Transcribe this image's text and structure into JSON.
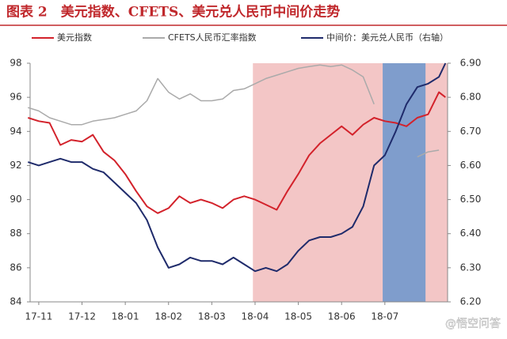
{
  "chart_data": {
    "type": "line",
    "title": "图表 2　美元指数、CFETS、美元兑人民币中间价走势",
    "watermark": "@悟空问答",
    "x": [
      -0.25,
      0,
      0.25,
      0.5,
      0.75,
      1,
      1.25,
      1.5,
      1.75,
      2,
      2.25,
      2.5,
      2.75,
      3,
      3.25,
      3.5,
      3.75,
      4,
      4.25,
      4.5,
      4.75,
      5,
      5.25,
      5.5,
      5.75,
      6,
      6.25,
      6.5,
      6.75,
      7,
      7.25,
      7.5,
      7.75,
      8,
      8.25,
      8.5,
      8.75,
      9,
      9.25,
      9.4
    ],
    "xlim": [
      -0.2,
      9.45
    ],
    "xticks": [
      {
        "value": 0,
        "label": "17-11"
      },
      {
        "value": 1,
        "label": "17-12"
      },
      {
        "value": 2,
        "label": "18-01"
      },
      {
        "value": 3,
        "label": "18-02"
      },
      {
        "value": 4,
        "label": "18-03"
      },
      {
        "value": 5,
        "label": "18-04"
      },
      {
        "value": 6,
        "label": "18-05"
      },
      {
        "value": 7,
        "label": "18-06"
      },
      {
        "value": 8,
        "label": "18-07"
      }
    ],
    "ylim": [
      84,
      98
    ],
    "yticks": [
      84,
      86,
      88,
      90,
      92,
      94,
      96,
      98
    ],
    "y2lim": [
      6.2,
      6.9
    ],
    "y2ticks": [
      {
        "value": 6.2,
        "label": "6.20"
      },
      {
        "value": 6.3,
        "label": "6.30"
      },
      {
        "value": 6.4,
        "label": "6.40"
      },
      {
        "value": 6.5,
        "label": "6.50"
      },
      {
        "value": 6.6,
        "label": "6.60"
      },
      {
        "value": 6.7,
        "label": "6.70"
      },
      {
        "value": 6.8,
        "label": "6.80"
      },
      {
        "value": 6.9,
        "label": "6.90"
      }
    ],
    "shaded_regions": [
      {
        "x": [
          4.95,
          9.45
        ],
        "color": "#f3c6c6"
      },
      {
        "x": [
          7.95,
          8.94
        ],
        "color": "#7f9dcc"
      }
    ],
    "series": [
      {
        "name": "美元指数",
        "color": "#d3222b",
        "values": [
          94.8,
          94.6,
          94.5,
          93.2,
          93.5,
          93.4,
          93.8,
          92.8,
          92.3,
          91.5,
          90.5,
          89.6,
          89.2,
          89.5,
          90.2,
          89.8,
          90.0,
          89.8,
          89.5,
          90.0,
          90.2,
          90.0,
          89.7,
          89.4,
          90.5,
          91.5,
          92.6,
          93.3,
          93.8,
          94.3,
          93.8,
          94.4,
          94.8,
          94.6,
          94.5,
          94.3,
          94.8,
          95.0,
          96.3,
          96.0
        ]
      },
      {
        "name": "CFETS人民币汇率指数",
        "color": "#aaaaaa",
        "values": [
          95.4,
          95.2,
          94.8,
          94.6,
          94.4,
          94.4,
          94.6,
          94.7,
          94.8,
          95.0,
          95.2,
          95.8,
          97.1,
          96.3,
          95.9,
          96.2,
          95.8,
          95.8,
          95.9,
          96.4,
          96.5,
          96.8,
          97.1,
          97.3,
          97.5,
          97.7,
          97.8,
          97.9,
          97.8,
          97.9,
          97.6,
          97.2,
          95.6,
          null,
          null,
          null,
          92.5,
          92.8,
          92.9,
          null
        ]
      },
      {
        "name": "中间价：美元兑人民币（右轴）",
        "color": "#1f2b6b",
        "axis": "y2",
        "values": [
          6.61,
          6.6,
          6.61,
          6.62,
          6.61,
          6.61,
          6.59,
          6.58,
          6.55,
          6.52,
          6.49,
          6.44,
          6.36,
          6.3,
          6.31,
          6.33,
          6.32,
          6.32,
          6.31,
          6.33,
          6.31,
          6.29,
          6.3,
          6.29,
          6.31,
          6.35,
          6.38,
          6.39,
          6.39,
          6.4,
          6.42,
          6.48,
          6.6,
          6.63,
          6.7,
          6.78,
          6.83,
          6.84,
          6.86,
          6.9
        ]
      }
    ]
  }
}
